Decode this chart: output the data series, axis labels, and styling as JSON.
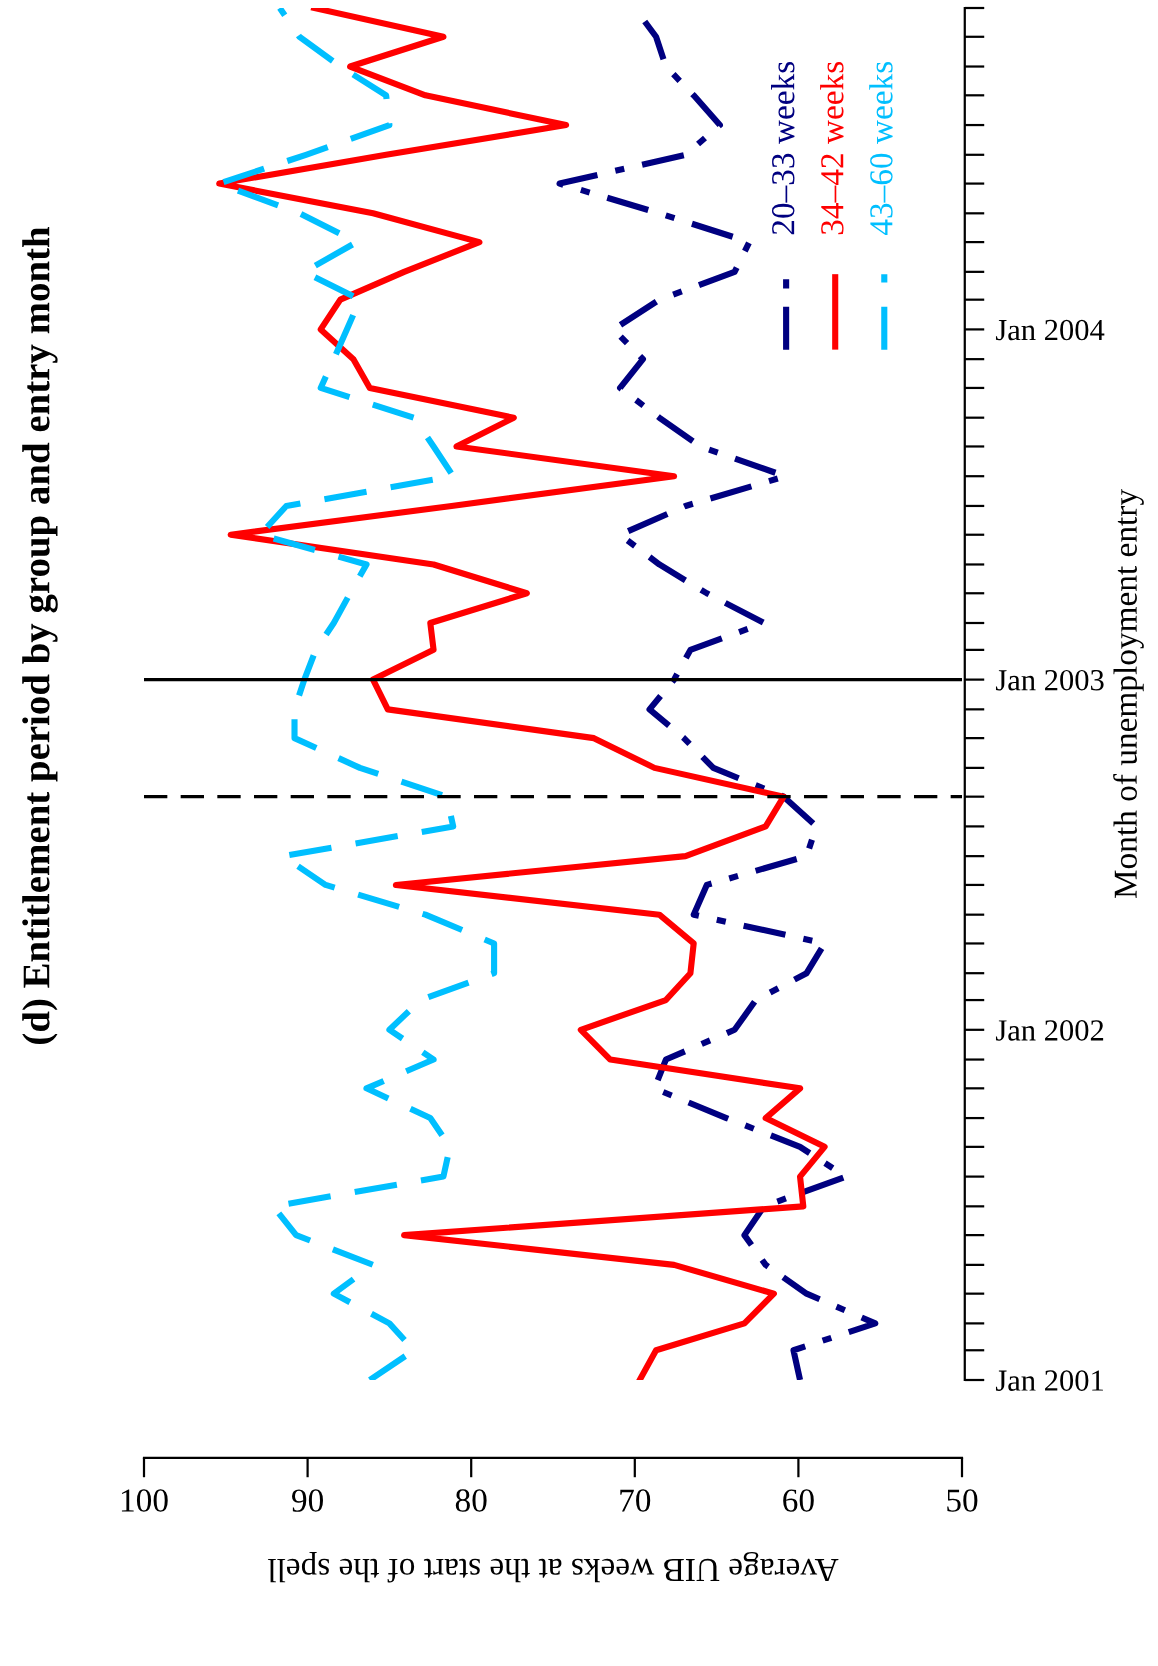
{
  "chart_data": {
    "type": "line",
    "orientation": "horizontal",
    "title": "(d) Entitlement period by group and entry month",
    "xlabel": "Average UIB weeks at the start of the spell",
    "ylabel": "Month of unemployment entry",
    "x": [
      "2001-01",
      "2001-02",
      "2001-03",
      "2001-04",
      "2001-05",
      "2001-06",
      "2001-07",
      "2001-08",
      "2001-09",
      "2001-10",
      "2001-11",
      "2001-12",
      "2002-01",
      "2002-02",
      "2002-03",
      "2002-04",
      "2002-05",
      "2002-06",
      "2002-07",
      "2002-08",
      "2002-09",
      "2002-10",
      "2002-11",
      "2002-12",
      "2003-01",
      "2003-02",
      "2003-03",
      "2003-04",
      "2003-05",
      "2003-06",
      "2003-07",
      "2003-08",
      "2003-09",
      "2003-10",
      "2003-11",
      "2003-12",
      "2004-01",
      "2004-02",
      "2004-03",
      "2004-04",
      "2004-05",
      "2004-06",
      "2004-07",
      "2004-08",
      "2004-09",
      "2004-10",
      "2004-11",
      "2004-12"
    ],
    "series": [
      {
        "name": "20–33 weeks",
        "color": "#000080",
        "line_style": "dashdot",
        "values": [
          59.9,
          60.3,
          55.3,
          59.5,
          62.0,
          63.3,
          62.1,
          57.1,
          59.9,
          64.4,
          68.8,
          68.1,
          63.9,
          62.6,
          59.5,
          58.4,
          66.4,
          65.6,
          59.5,
          58.9,
          60.9,
          65.2,
          67.0,
          69.1,
          67.6,
          66.6,
          62.1,
          65.6,
          68.5,
          70.9,
          66.9,
          60.8,
          66.0,
          68.5,
          70.9,
          69.5,
          71.3,
          68.5,
          63.9,
          63.0,
          68.5,
          74.6,
          66.9,
          64.8,
          66.4,
          68.1,
          68.7,
          70.0
        ]
      },
      {
        "name": "34–42 weeks",
        "color": "#ff0000",
        "line_style": "solid",
        "values": [
          69.7,
          68.7,
          63.3,
          61.5,
          67.6,
          84.1,
          59.7,
          59.9,
          58.4,
          62.0,
          59.9,
          71.5,
          73.3,
          68.1,
          66.6,
          66.4,
          68.5,
          84.6,
          66.9,
          62.0,
          60.9,
          68.8,
          72.5,
          85.1,
          86.0,
          82.3,
          82.5,
          76.6,
          82.3,
          94.7,
          81.2,
          67.6,
          80.9,
          77.4,
          86.2,
          87.2,
          89.2,
          88.0,
          84.1,
          79.5,
          86.0,
          95.4,
          85.2,
          74.2,
          82.8,
          87.4,
          81.7,
          89.6
        ]
      },
      {
        "name": "43–60 weeks",
        "color": "#00bfff",
        "line_style": "dashed",
        "values": [
          86.2,
          83.5,
          85.0,
          88.4,
          86.0,
          90.7,
          92.1,
          81.7,
          81.3,
          82.5,
          86.4,
          82.3,
          85.0,
          83.1,
          78.6,
          78.6,
          82.8,
          88.9,
          91.5,
          81.1,
          81.5,
          86.8,
          90.8,
          90.8,
          90.2,
          89.5,
          88.4,
          87.4,
          86.4,
          92.9,
          91.3,
          81.1,
          82.3,
          83.5,
          89.2,
          88.4,
          87.6,
          86.8,
          90.2,
          87.0,
          90.5,
          95.4,
          90.1,
          85.0,
          85.2,
          88.0,
          90.5,
          91.7
        ]
      }
    ],
    "xlim": [
      100,
      50
    ],
    "xticks": [
      50,
      60,
      70,
      80,
      90,
      100
    ],
    "ylim": [
      "2001-01",
      "2004-12"
    ],
    "yticks": [
      {
        "value": "2001-01",
        "label": "Jan 2001"
      },
      {
        "value": "2001-02",
        "label": null
      },
      {
        "value": "2001-03",
        "label": null
      },
      {
        "value": "2001-04",
        "label": null
      },
      {
        "value": "2001-05",
        "label": null
      },
      {
        "value": "2001-06",
        "label": null
      },
      {
        "value": "2001-07",
        "label": null
      },
      {
        "value": "2001-08",
        "label": null
      },
      {
        "value": "2001-09",
        "label": null
      },
      {
        "value": "2001-10",
        "label": null
      },
      {
        "value": "2001-11",
        "label": null
      },
      {
        "value": "2001-12",
        "label": null
      },
      {
        "value": "2002-01",
        "label": "Jan 2002"
      },
      {
        "value": "2002-02",
        "label": null
      },
      {
        "value": "2002-03",
        "label": null
      },
      {
        "value": "2002-04",
        "label": null
      },
      {
        "value": "2002-05",
        "label": null
      },
      {
        "value": "2002-06",
        "label": null
      },
      {
        "value": "2002-07",
        "label": null
      },
      {
        "value": "2002-08",
        "label": null
      },
      {
        "value": "2002-09",
        "label": null
      },
      {
        "value": "2002-10",
        "label": null
      },
      {
        "value": "2002-11",
        "label": null
      },
      {
        "value": "2002-12",
        "label": null
      },
      {
        "value": "2003-01",
        "label": "Jan 2003"
      },
      {
        "value": "2003-02",
        "label": null
      },
      {
        "value": "2003-03",
        "label": null
      },
      {
        "value": "2003-04",
        "label": null
      },
      {
        "value": "2003-05",
        "label": null
      },
      {
        "value": "2003-06",
        "label": null
      },
      {
        "value": "2003-07",
        "label": null
      },
      {
        "value": "2003-08",
        "label": null
      },
      {
        "value": "2003-09",
        "label": null
      },
      {
        "value": "2003-10",
        "label": null
      },
      {
        "value": "2003-11",
        "label": null
      },
      {
        "value": "2003-12",
        "label": null
      },
      {
        "value": "2004-01",
        "label": "Jan 2004"
      },
      {
        "value": "2004-02",
        "label": null
      },
      {
        "value": "2004-03",
        "label": null
      },
      {
        "value": "2004-04",
        "label": null
      },
      {
        "value": "2004-05",
        "label": null
      },
      {
        "value": "2004-06",
        "label": null
      },
      {
        "value": "2004-07",
        "label": null
      },
      {
        "value": "2004-08",
        "label": null
      },
      {
        "value": "2004-09",
        "label": null
      },
      {
        "value": "2004-10",
        "label": null
      },
      {
        "value": "2004-11",
        "label": null
      },
      {
        "value": "2004-12",
        "label": null
      }
    ],
    "ref_lines": [
      {
        "axis": "y",
        "value": "2002-09",
        "color": "#000000",
        "line_style": "dashed"
      },
      {
        "axis": "y",
        "value": "2003-01",
        "color": "#000000",
        "line_style": "solid"
      }
    ],
    "legend": "top right",
    "grid": false
  }
}
